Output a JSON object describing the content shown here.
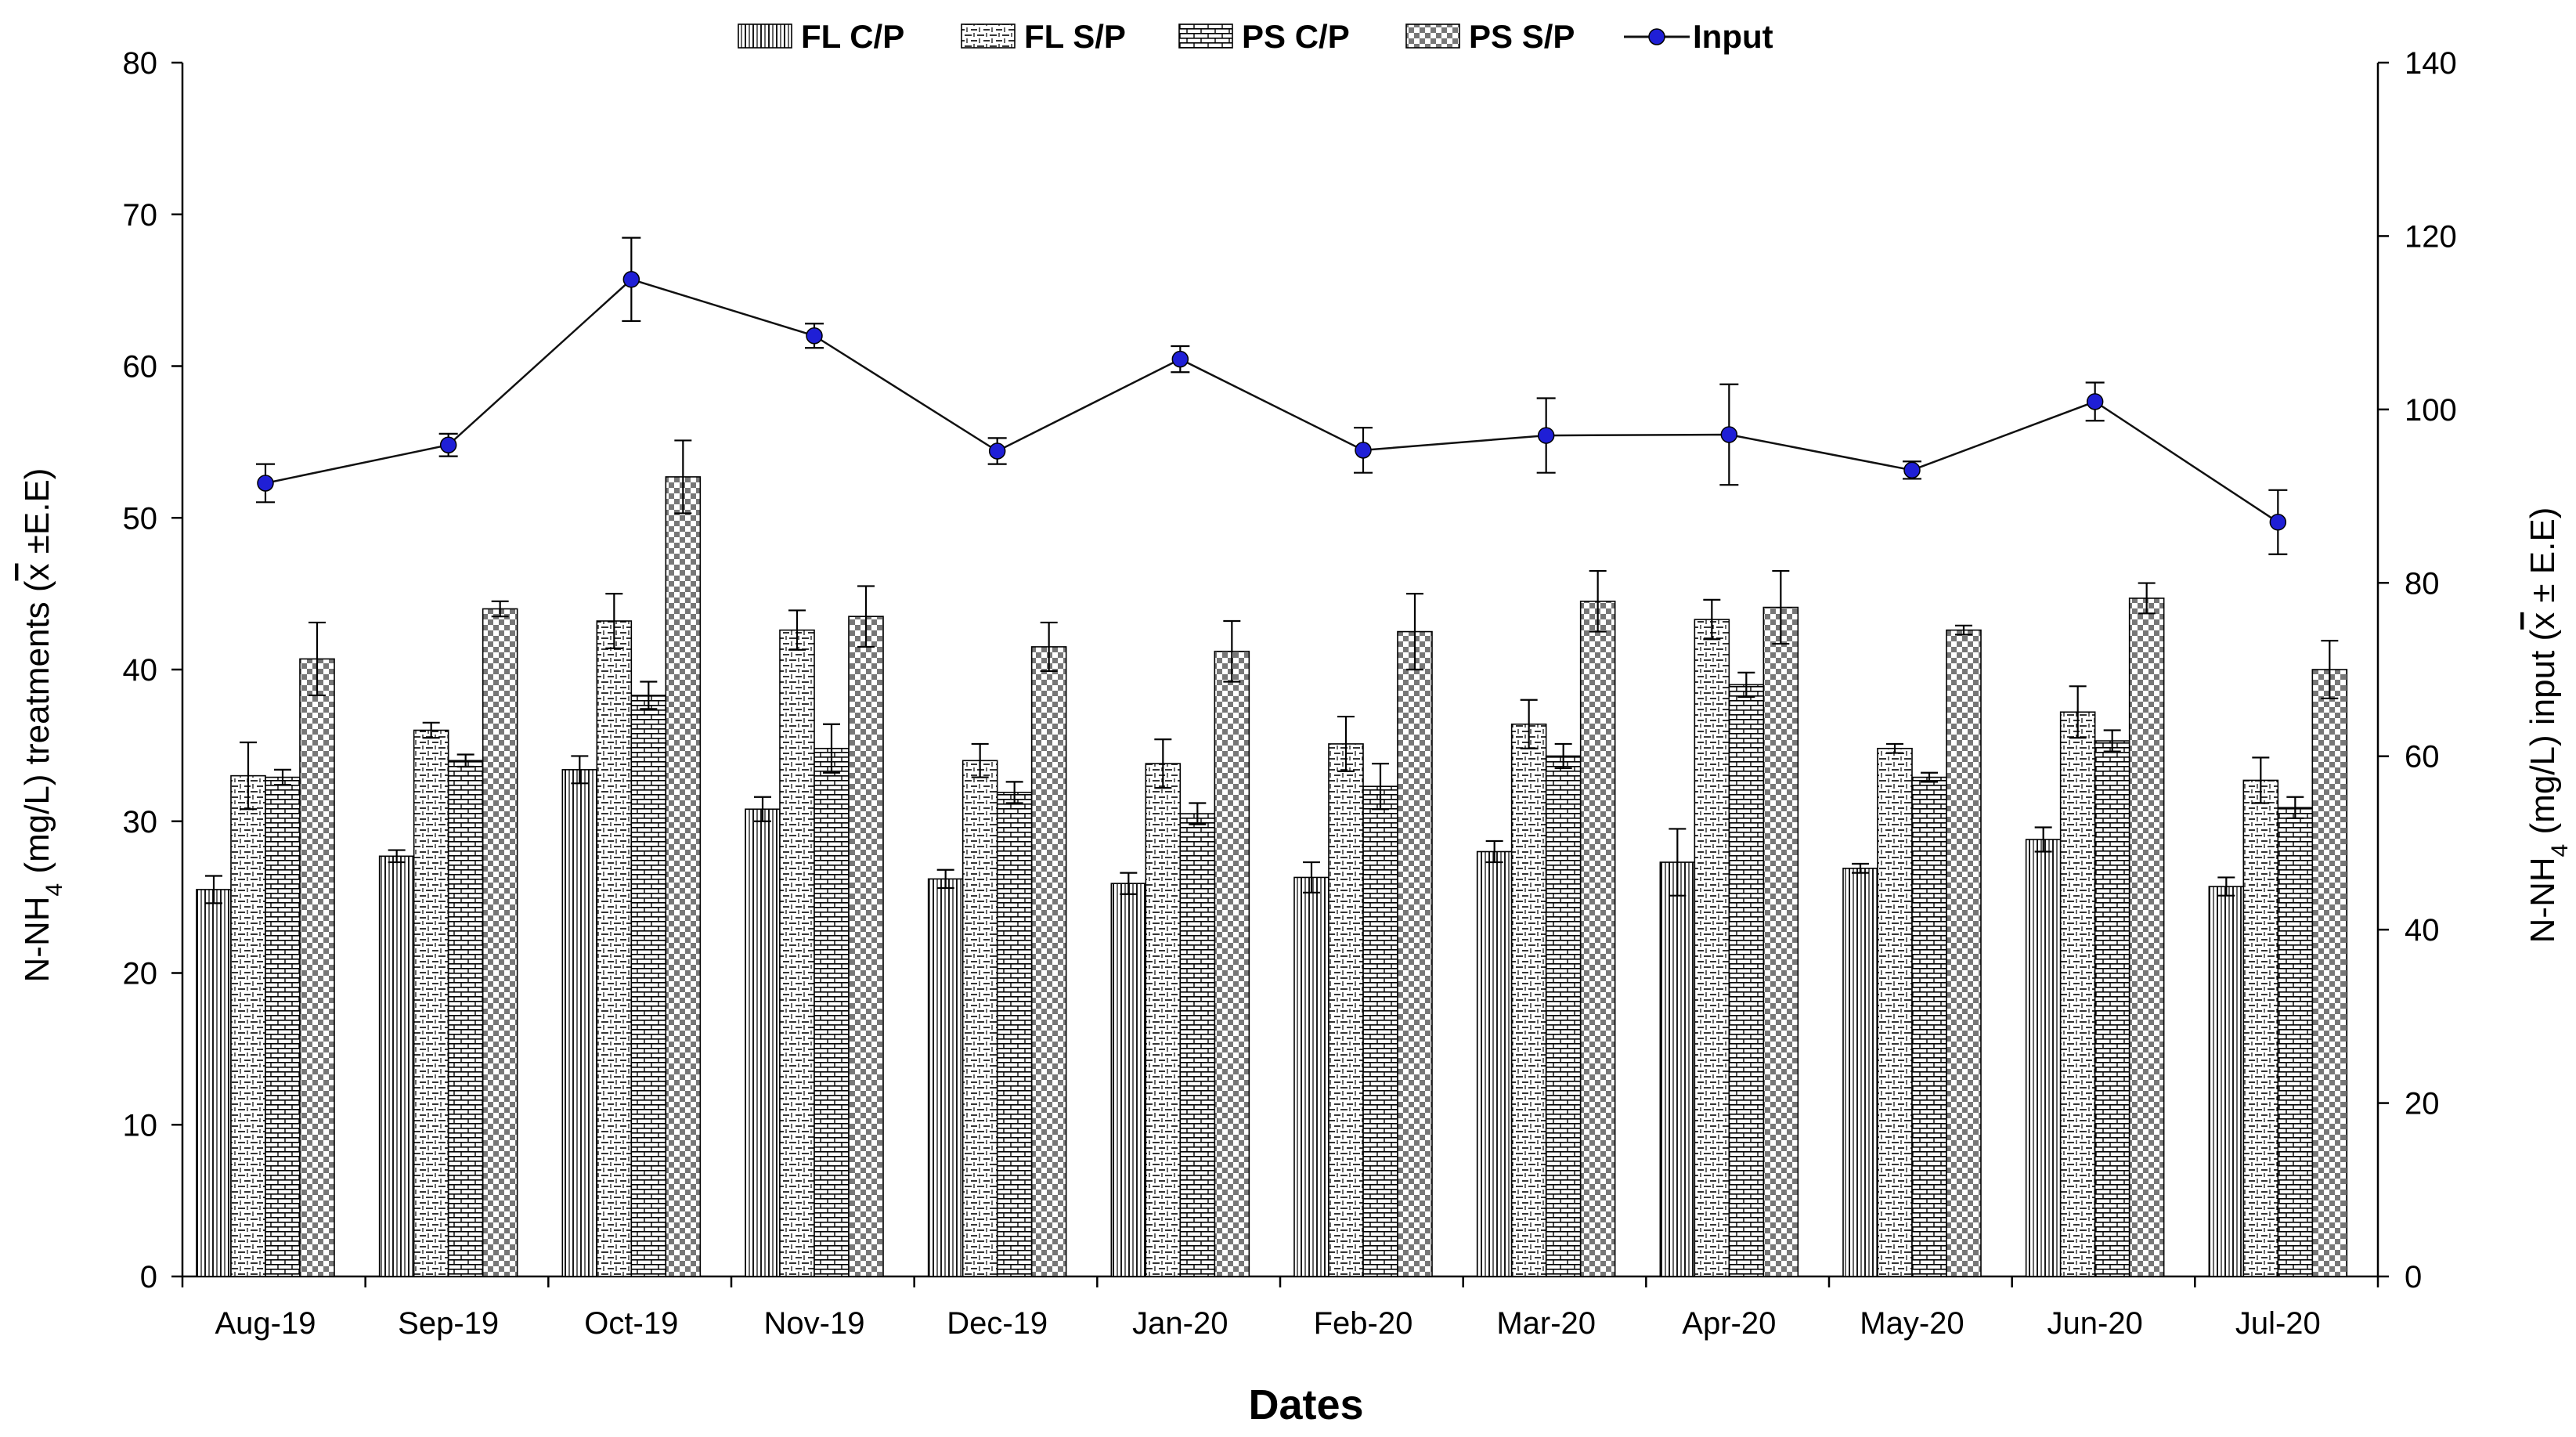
{
  "chart_data": {
    "type": "bar",
    "title": "",
    "xlabel": "Dates",
    "ylabel_left": {
      "prefix": "N-NH",
      "sub": "4",
      "main": " (mg/L) treatments (",
      "xbar": "x",
      "suffix": " ±E.E)"
    },
    "ylabel_right": {
      "prefix": "N-NH",
      "sub": "4",
      "main": " (mg/L) input (",
      "xbar": "x",
      "suffix": " ± E.E)"
    },
    "ylim_left": [
      0,
      80
    ],
    "yticks_left": [
      0,
      10,
      20,
      30,
      40,
      50,
      60,
      70,
      80
    ],
    "ylim_right": [
      0,
      140
    ],
    "yticks_right": [
      0,
      20,
      40,
      60,
      80,
      100,
      120,
      140
    ],
    "legend_position": "top",
    "grid": false,
    "categories": [
      "Aug-19",
      "Sep-19",
      "Oct-19",
      "Nov-19",
      "Dec-19",
      "Jan-20",
      "Feb-20",
      "Mar-20",
      "Apr-20",
      "May-20",
      "Jun-20",
      "Jul-20"
    ],
    "series": [
      {
        "name": "FL C/P",
        "kind": "bar",
        "axis": "left",
        "pattern": "vlines",
        "values": [
          25.5,
          27.7,
          33.4,
          30.8,
          26.2,
          25.9,
          26.3,
          28.0,
          27.3,
          26.9,
          28.8,
          25.7
        ],
        "errors": [
          0.9,
          0.4,
          0.9,
          0.8,
          0.6,
          0.7,
          1.0,
          0.7,
          2.2,
          0.3,
          0.8,
          0.6
        ]
      },
      {
        "name": "FL S/P",
        "kind": "bar",
        "axis": "left",
        "pattern": "dashes",
        "values": [
          33.0,
          36.0,
          43.2,
          42.6,
          34.0,
          33.8,
          35.1,
          36.4,
          43.3,
          34.8,
          37.2,
          32.7
        ],
        "errors": [
          2.2,
          0.5,
          1.8,
          1.3,
          1.1,
          1.6,
          1.8,
          1.6,
          1.3,
          0.3,
          1.7,
          1.5
        ]
      },
      {
        "name": "PS C/P",
        "kind": "bar",
        "axis": "left",
        "pattern": "brick",
        "values": [
          32.9,
          34.0,
          38.3,
          34.8,
          31.9,
          30.5,
          32.3,
          34.3,
          39.0,
          32.9,
          35.3,
          30.9
        ],
        "errors": [
          0.5,
          0.4,
          0.9,
          1.6,
          0.7,
          0.7,
          1.5,
          0.8,
          0.8,
          0.3,
          0.7,
          0.7
        ]
      },
      {
        "name": "PS S/P",
        "kind": "bar",
        "axis": "left",
        "pattern": "checker",
        "values": [
          40.7,
          44.0,
          52.7,
          43.5,
          41.5,
          41.2,
          42.5,
          44.5,
          44.1,
          42.6,
          44.7,
          40.0
        ],
        "errors": [
          2.4,
          0.5,
          2.4,
          2.0,
          1.6,
          2.0,
          2.5,
          2.0,
          2.4,
          0.3,
          1.0,
          1.9
        ]
      },
      {
        "name": "Input",
        "kind": "line",
        "axis": "right",
        "color": "#1f1fd6",
        "values": [
          91.5,
          95.9,
          115.0,
          108.5,
          95.2,
          105.8,
          95.3,
          97.0,
          97.1,
          93.0,
          100.9,
          87.0
        ],
        "errors": [
          2.2,
          1.3,
          4.8,
          1.4,
          1.5,
          1.5,
          2.6,
          4.3,
          5.8,
          1.0,
          2.2,
          3.7
        ]
      }
    ]
  }
}
